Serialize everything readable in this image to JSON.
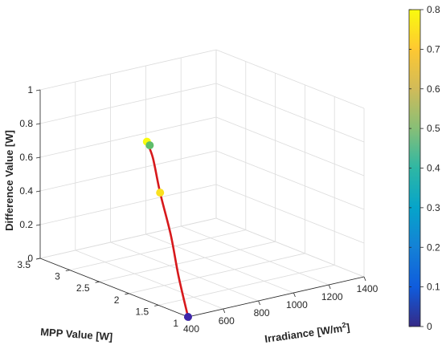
{
  "chart_data": {
    "type": "line3d",
    "title": "",
    "xlabel": "Irradiance [W/m",
    "xlabel_sup": "2",
    "xlabel_close": "]",
    "ylabel": "MPP Value [W]",
    "zlabel": "Difference Value [W]",
    "xlim": [
      400,
      1400
    ],
    "ylim": [
      1,
      3.5
    ],
    "zlim": [
      0,
      1
    ],
    "xticks": [
      "400",
      "600",
      "800",
      "1000",
      "1200",
      "1400"
    ],
    "yticks": [
      "1",
      "1.5",
      "2",
      "2.5",
      "3",
      "3.5"
    ],
    "zticks": [
      "0",
      "0.2",
      "0.4",
      "0.6",
      "0.8",
      "1"
    ],
    "grid": true,
    "colormap": "parula",
    "colorbar": {
      "ticks": [
        "0",
        "0.1",
        "0.2",
        "0.3",
        "0.4",
        "0.5",
        "0.6",
        "0.7",
        "0.8"
      ],
      "range": [
        0,
        0.8
      ]
    },
    "curve": {
      "color": "#d7191c",
      "points": [
        {
          "x": 400,
          "y": 1.0,
          "z": 0.0
        },
        {
          "x": 430,
          "y": 1.25,
          "z": 0.2
        },
        {
          "x": 470,
          "y": 1.5,
          "z": 0.4
        },
        {
          "x": 510,
          "y": 1.8,
          "z": 0.6
        },
        {
          "x": 570,
          "y": 2.1,
          "z": 0.75
        },
        {
          "x": 620,
          "y": 2.35,
          "z": 0.8
        },
        {
          "x": 680,
          "y": 2.5,
          "z": 0.77
        },
        {
          "x": 720,
          "y": 2.6,
          "z": 0.72
        }
      ]
    },
    "markers": [
      {
        "x": 400,
        "y": 1.0,
        "z": 0.0,
        "value": 0.0,
        "color": "#3e26a8"
      },
      {
        "x": 510,
        "y": 1.8,
        "z": 0.6,
        "value": 0.78,
        "color": "#f9e020"
      },
      {
        "x": 620,
        "y": 2.35,
        "z": 0.8,
        "value": 0.8,
        "color": "#f9fb0e"
      },
      {
        "x": 720,
        "y": 2.6,
        "z": 0.72,
        "value": 0.48,
        "color": "#5fbd6b"
      }
    ]
  }
}
